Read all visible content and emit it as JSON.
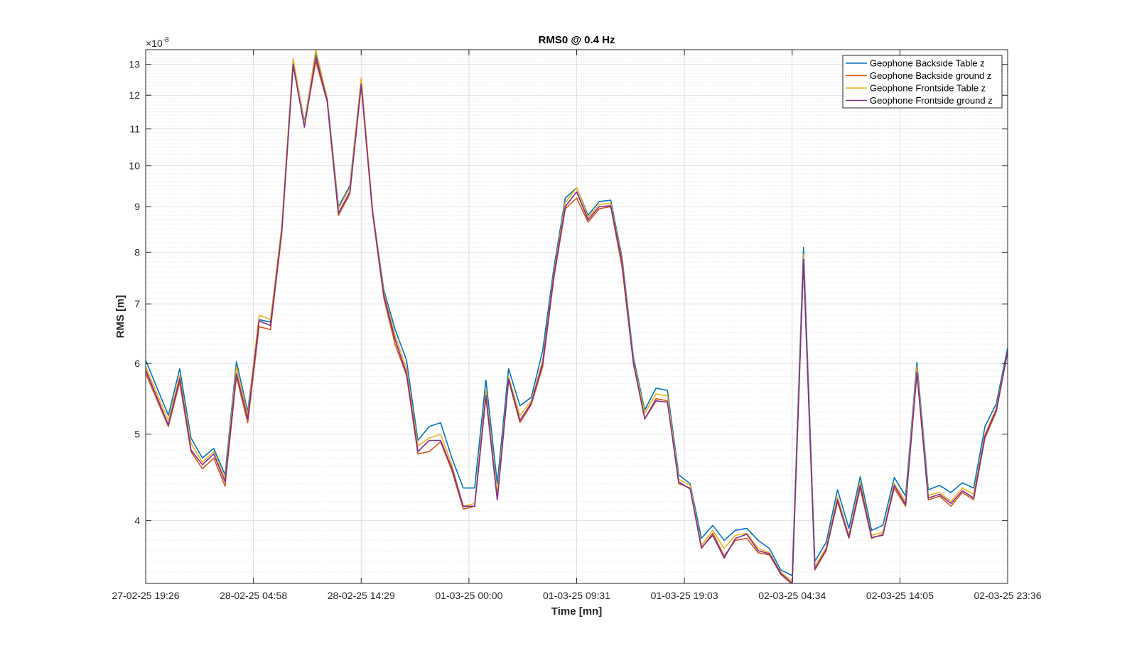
{
  "chart_data": {
    "type": "line",
    "title": "RMS0 @ 0.4 Hz",
    "xlabel": "Time [mn]",
    "ylabel": "RMS [m]",
    "y_scale": "log",
    "y_exponent_label": "×10",
    "y_exponent": "-8",
    "ylim": [
      3.4,
      13.5
    ],
    "y_ticks": [
      4,
      5,
      6,
      7,
      8,
      9,
      10,
      11,
      12,
      13
    ],
    "x_tick_labels": [
      "27-02-25 19:26",
      "28-02-25 04:58",
      "28-02-25 14:29",
      "01-03-25 00:00",
      "01-03-25 09:31",
      "01-03-25 19:03",
      "02-03-25 04:34",
      "02-03-25 14:05",
      "02-03-25 23:36"
    ],
    "x_hours": [
      0,
      2,
      3,
      4,
      5,
      6,
      7,
      8,
      9,
      10,
      11,
      12,
      13,
      14,
      15,
      16,
      17,
      18,
      19,
      20,
      21,
      22,
      23,
      24,
      25,
      26,
      27,
      28,
      29,
      30,
      31,
      32,
      33,
      34,
      35,
      36,
      37,
      38,
      39,
      40,
      41,
      42,
      43,
      44,
      45,
      46,
      47,
      48,
      49,
      50,
      51,
      52,
      53,
      54,
      55,
      56,
      57,
      58,
      59,
      60,
      61,
      62,
      63,
      64,
      65,
      66,
      67,
      68,
      69,
      70,
      71,
      72,
      73,
      74,
      75,
      76
    ],
    "grid": true,
    "legend_position": "top-right",
    "series": [
      {
        "name": "Geophone Backside Table z",
        "color": "#0072BD",
        "values": [
          6.05,
          5.25,
          5.92,
          4.95,
          4.7,
          4.82,
          4.5,
          6.03,
          5.3,
          6.72,
          6.68,
          8.5,
          13.15,
          11.2,
          13.4,
          11.9,
          9.0,
          9.5,
          12.5,
          8.9,
          7.25,
          6.55,
          6.05,
          4.92,
          5.1,
          5.15,
          4.7,
          4.35,
          4.35,
          5.75,
          4.4,
          5.92,
          5.38,
          5.5,
          6.2,
          7.7,
          9.2,
          9.45,
          8.8,
          9.12,
          9.15,
          7.9,
          6.1,
          5.32,
          5.63,
          5.6,
          4.5,
          4.4,
          3.82,
          3.95,
          3.8,
          3.9,
          3.92,
          3.8,
          3.72,
          3.52,
          3.47,
          8.1,
          3.6,
          3.78,
          4.33,
          3.92,
          4.48,
          3.9,
          3.95,
          4.47,
          4.26,
          6.02,
          4.33,
          4.38,
          4.3,
          4.41,
          4.35,
          5.1,
          5.41,
          6.25
        ]
      },
      {
        "name": "Geophone Backside ground z",
        "color": "#D95319",
        "values": [
          5.85,
          5.1,
          5.72,
          4.78,
          4.57,
          4.7,
          4.37,
          5.8,
          5.15,
          6.6,
          6.55,
          8.4,
          12.95,
          11.1,
          13.1,
          11.8,
          8.8,
          9.3,
          12.3,
          8.85,
          7.1,
          6.3,
          5.82,
          4.75,
          4.78,
          4.9,
          4.55,
          4.12,
          4.15,
          5.5,
          4.22,
          5.75,
          5.15,
          5.4,
          5.95,
          7.5,
          8.95,
          9.2,
          8.65,
          8.95,
          9.0,
          7.7,
          6.0,
          5.2,
          5.48,
          5.45,
          4.4,
          4.35,
          3.72,
          3.87,
          3.65,
          3.8,
          3.82,
          3.68,
          3.66,
          3.48,
          3.39,
          7.8,
          3.52,
          3.7,
          4.2,
          3.82,
          4.35,
          3.82,
          3.86,
          4.35,
          4.15,
          5.85,
          4.22,
          4.26,
          4.15,
          4.3,
          4.22,
          4.95,
          5.3,
          6.18
        ]
      },
      {
        "name": "Geophone Frontside Table z",
        "color": "#EDB120",
        "values": [
          5.95,
          5.18,
          5.82,
          4.88,
          4.65,
          4.78,
          4.45,
          5.95,
          5.25,
          6.8,
          6.72,
          8.55,
          13.2,
          11.15,
          13.5,
          11.9,
          8.95,
          9.45,
          12.55,
          8.95,
          7.2,
          6.45,
          5.92,
          4.85,
          4.95,
          5.0,
          4.62,
          4.15,
          4.18,
          5.6,
          4.28,
          5.8,
          5.25,
          5.45,
          6.05,
          7.6,
          9.1,
          9.45,
          8.75,
          9.05,
          9.08,
          7.85,
          6.05,
          5.28,
          5.55,
          5.52,
          4.45,
          4.38,
          3.75,
          3.9,
          3.72,
          3.85,
          3.87,
          3.72,
          3.68,
          3.5,
          3.42,
          7.95,
          3.55,
          3.73,
          4.25,
          3.85,
          4.42,
          3.85,
          3.88,
          4.4,
          4.2,
          5.95,
          4.27,
          4.3,
          4.2,
          4.35,
          4.28,
          5.0,
          5.35,
          6.2
        ]
      },
      {
        "name": "Geophone Frontside ground z",
        "color": "#7E2F8E",
        "values": [
          5.9,
          5.12,
          5.77,
          4.8,
          4.62,
          4.75,
          4.42,
          5.85,
          5.2,
          6.7,
          6.62,
          8.45,
          13.0,
          11.05,
          13.25,
          11.85,
          8.85,
          9.35,
          12.35,
          8.9,
          7.15,
          6.38,
          5.85,
          4.78,
          4.92,
          4.92,
          4.58,
          4.15,
          4.15,
          5.52,
          4.22,
          5.77,
          5.18,
          5.42,
          6.0,
          7.55,
          9.0,
          9.35,
          8.7,
          9.0,
          9.02,
          7.8,
          6.02,
          5.2,
          5.45,
          5.43,
          4.42,
          4.34,
          3.73,
          3.85,
          3.63,
          3.82,
          3.86,
          3.7,
          3.67,
          3.49,
          3.4,
          7.85,
          3.53,
          3.71,
          4.22,
          3.83,
          4.38,
          3.83,
          3.85,
          4.38,
          4.17,
          5.87,
          4.24,
          4.28,
          4.18,
          4.32,
          4.24,
          4.98,
          5.32,
          6.2
        ]
      }
    ]
  }
}
